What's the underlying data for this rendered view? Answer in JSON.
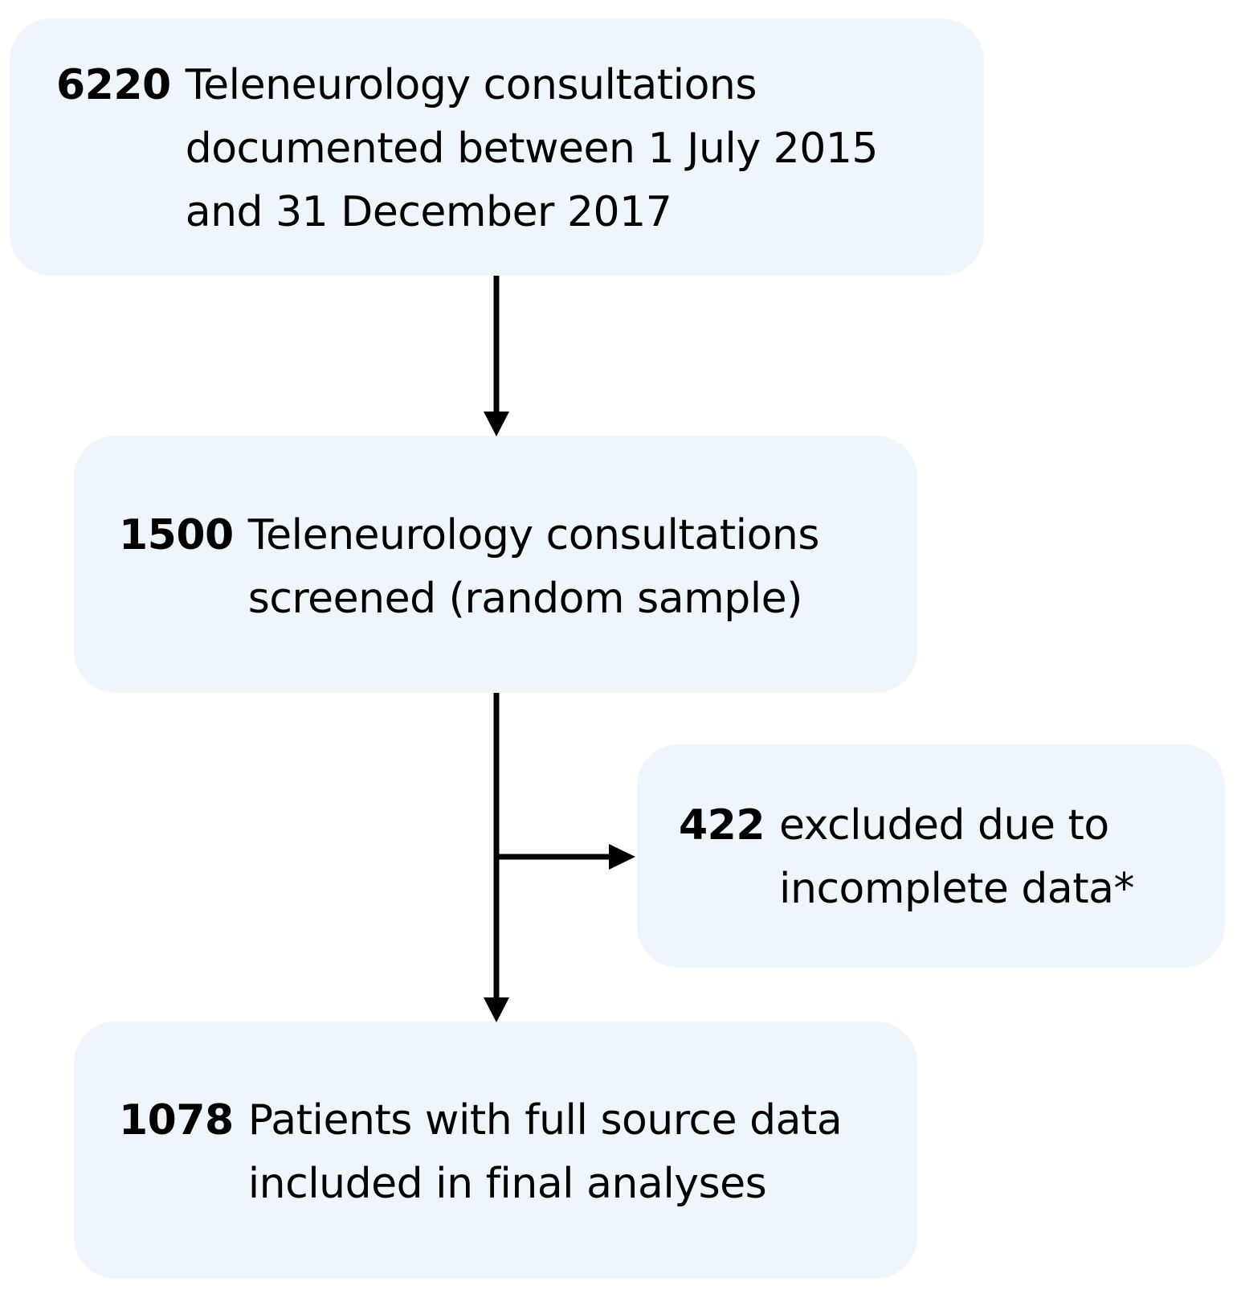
{
  "boxes": [
    {
      "count": "6220",
      "lines": [
        "Teleneurology consultations",
        "documented between 1 July 2015",
        "and 31 December 2017"
      ]
    },
    {
      "count": "1500",
      "lines": [
        "Teleneurology consultations",
        "screened (random sample)"
      ]
    },
    {
      "count": "422",
      "lines": [
        "excluded due to",
        "incomplete data*"
      ]
    },
    {
      "count": "1078",
      "lines": [
        "Patients with full source data",
        "included in final analyses"
      ]
    }
  ],
  "colors": {
    "box_fill": "#eef5fb",
    "arrow": "#000000"
  }
}
